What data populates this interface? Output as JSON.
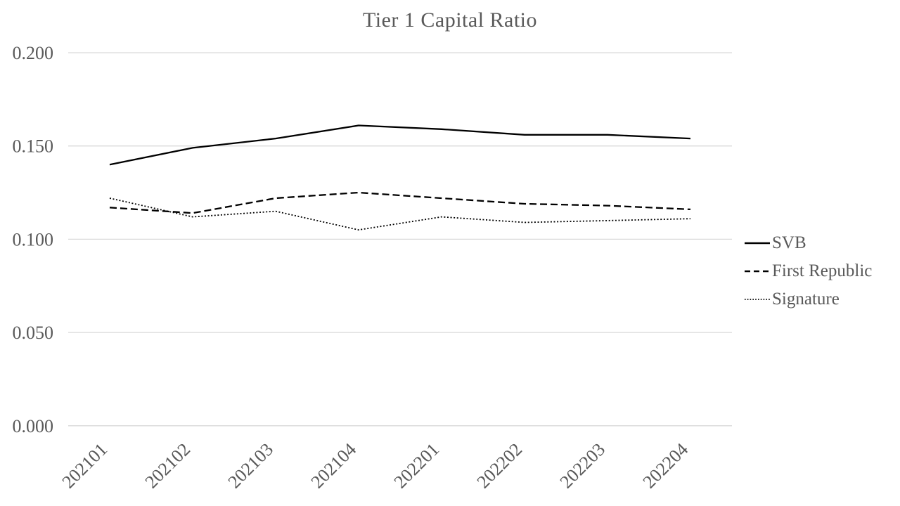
{
  "title": "Tier 1 Capital Ratio",
  "chart_data": {
    "type": "line",
    "title": "Tier 1 Capital Ratio",
    "xlabel": "",
    "ylabel": "",
    "categories": [
      "202101",
      "202102",
      "202103",
      "202104",
      "202201",
      "202202",
      "202203",
      "202204"
    ],
    "series": [
      {
        "name": "SVB",
        "style": "solid",
        "values": [
          0.14,
          0.149,
          0.154,
          0.161,
          0.159,
          0.156,
          0.156,
          0.154
        ]
      },
      {
        "name": "First Republic",
        "style": "dashed",
        "values": [
          0.117,
          0.114,
          0.122,
          0.125,
          0.122,
          0.119,
          0.118,
          0.116
        ]
      },
      {
        "name": "Signature",
        "style": "dotted",
        "values": [
          0.122,
          0.112,
          0.115,
          0.105,
          0.112,
          0.109,
          0.11,
          0.111
        ]
      }
    ],
    "ylim": [
      0.0,
      0.2
    ],
    "y_ticks": [
      "0.000",
      "0.050",
      "0.100",
      "0.150",
      "0.200"
    ],
    "grid": true,
    "legend_position": "right",
    "x_tick_rotation_deg": 45
  },
  "colors": {
    "line": "#000000",
    "label": "#595959",
    "gridline": "#d9d9d9",
    "background": "#ffffff"
  }
}
